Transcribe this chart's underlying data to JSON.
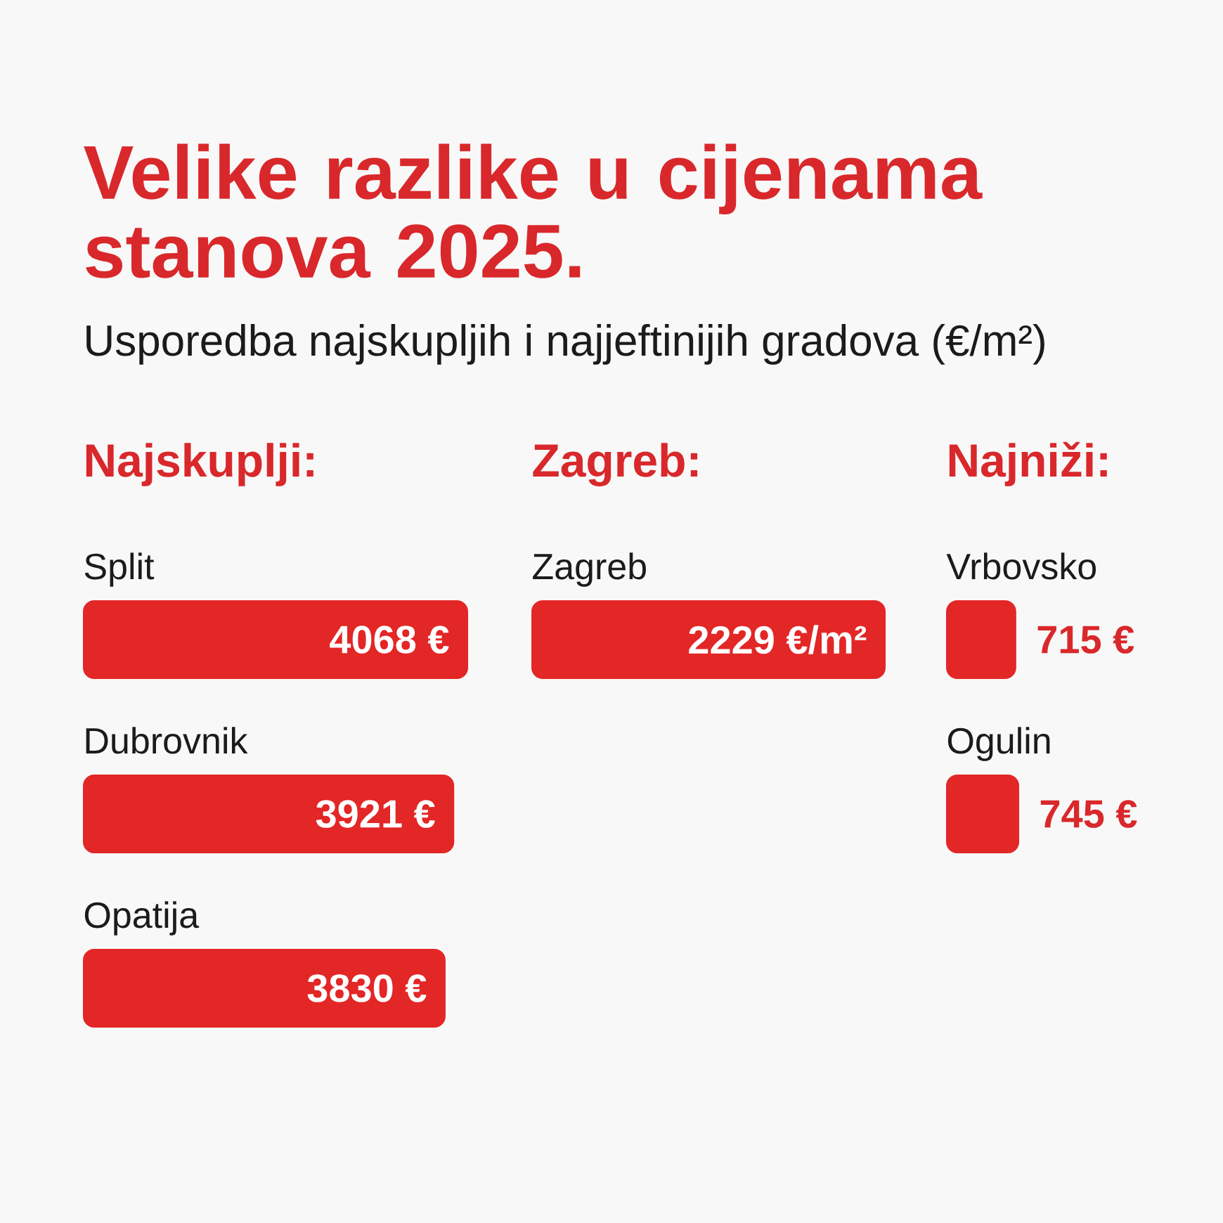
{
  "chart_data": [
    {
      "type": "other",
      "title": "Velike razlike u cijenama stanova 2025.",
      "subtitle": "Usporedba najskupljih i najjeftinijih gradova (€/m²)"
    },
    {
      "type": "bar",
      "orientation": "horizontal",
      "title": "Najskuplji:",
      "categories": [
        "Split",
        "Dubrovnik",
        "Opatija"
      ],
      "values": [
        4068,
        3921,
        3830
      ],
      "value_labels": [
        "4068 €",
        "3921 €",
        "3830 €"
      ],
      "color": "#e32626"
    },
    {
      "type": "bar",
      "orientation": "horizontal",
      "title": "Zagreb:",
      "categories": [
        "Zagreb"
      ],
      "values": [
        2229
      ],
      "value_labels": [
        "2229 €/m²"
      ],
      "color": "#e32626"
    },
    {
      "type": "bar",
      "orientation": "horizontal",
      "title": "Najniži:",
      "categories": [
        "Vrbovsko",
        "Ogulin"
      ],
      "values": [
        715,
        745
      ],
      "value_labels": [
        "715 €",
        "745 €"
      ],
      "color": "#e32626"
    }
  ]
}
